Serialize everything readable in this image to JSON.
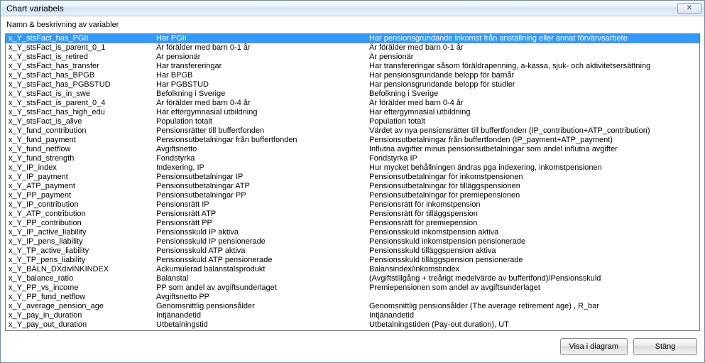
{
  "window": {
    "title": "Chart variabels",
    "subtitle": "Namn & beskrivning av variabler",
    "close_glyph": "✕"
  },
  "footer": {
    "show_btn": "Visa i diagram",
    "close_btn": "Stäng"
  },
  "selected_index": 0,
  "rows": [
    {
      "name": "x_Y_stsFact_has_PGII",
      "label": "Har PGII",
      "desc": "Har pensionsgrundande inkomst från anställning eller annat förvärvsarbete"
    },
    {
      "name": "x_Y_stsFact_is_parent_0_1",
      "label": "Är förälder med barn 0-1 år",
      "desc": "Är förälder med barn 0-1 år"
    },
    {
      "name": "x_Y_stsFact_is_retired",
      "label": "Är pensionär",
      "desc": "Är pensionär"
    },
    {
      "name": "x_Y_stsFact_has_transfer",
      "label": "Har transfereringar",
      "desc": "Har transfereringar såsom föräldrapenning, a-kassa, sjuk- och aktivitetsersättning"
    },
    {
      "name": "x_Y_stsFact_has_BPGB",
      "label": "Har BPGB",
      "desc": "Har pensionsgrundande belopp för barnår"
    },
    {
      "name": "x_Y_stsFact_has_PGBSTUD",
      "label": "Har PGBSTUD",
      "desc": "Har pensionsgrundande belopp för studier"
    },
    {
      "name": "x_Y_stsFact_is_in_swe",
      "label": "Befolkning i Sverige",
      "desc": "Befolkning i Sverige"
    },
    {
      "name": "x_Y_stsFact_is_parent_0_4",
      "label": "Är förälder med barn 0-4 år",
      "desc": "Är förälder med barn 0-4 år"
    },
    {
      "name": "x_Y_stsFact_has_high_edu",
      "label": "Har eftergymnasial utbildning",
      "desc": "Har eftergymnasial utbildning"
    },
    {
      "name": "x_Y_stsFact_is_alive",
      "label": "Population totalt",
      "desc": "Population totalt"
    },
    {
      "name": "x_Y_fund_contribution",
      "label": "Pensionsrätter till buffertfonden",
      "desc": "Värdet av nya pensionsrätter till buffertfonden (IP_contribution+ATP_contribution)"
    },
    {
      "name": "x_Y_fund_payment",
      "label": "Pensionsutbetalningar från buffertfonden",
      "desc": "Pensionsutbetalningar från buffertfonden (IP_payment+ATP_payment)"
    },
    {
      "name": "x_Y_fund_netflow",
      "label": "Avgiftsnetto",
      "desc": "Influtna avgifter minus pensionsutbetalningar som andel influtna avgifter"
    },
    {
      "name": "x_Y_fund_strength",
      "label": "Fondstyrka",
      "desc": "Fondstyrka IP"
    },
    {
      "name": "x_Y_IP_index",
      "label": "Indexering, IP",
      "desc": "Hur mycket behållningen ändras pga indexering, inkomstpensionen"
    },
    {
      "name": "x_Y_IP_payment",
      "label": "Pensionsutbetalningar IP",
      "desc": "Pensionsutbetalningar för inkomstpensionen"
    },
    {
      "name": "x_Y_ATP_payment",
      "label": "Pensionsutbetalningar ATP",
      "desc": "Pensionsutbetalningar för tilläggspensionen"
    },
    {
      "name": "x_Y_PP_payment",
      "label": "Pensionsutbetalningar PP",
      "desc": "Pensionsutbetalningar för premiepensionen"
    },
    {
      "name": "x_Y_IP_contribution",
      "label": "Pensionsrätt IP",
      "desc": "Pensionsrätt för inkomstpension"
    },
    {
      "name": "x_Y_ATP_contribution",
      "label": "Pensionsrätt ATP",
      "desc": "Pensionsrätt för tilläggspension"
    },
    {
      "name": "x_Y_PP_contribution",
      "label": "Pensionsrätt PP",
      "desc": "Pensionsrätt för premiepension"
    },
    {
      "name": "x_Y_IP_active_liability",
      "label": "Pensionsskuld IP aktiva",
      "desc": "Pensionsskuld inkomstpension aktiva"
    },
    {
      "name": "x_Y_IP_pens_liability",
      "label": "Pensionsskuld IP pensionerade",
      "desc": "Pensionsskuld inkomstpension pensionerade"
    },
    {
      "name": "x_Y_TP_active_liability",
      "label": "Pensionsskuld ATP aktiva",
      "desc": "Pensionsskuld tilläggspension aktiva"
    },
    {
      "name": "x_Y_TP_pens_liability",
      "label": "Pensionsskuld ATP pensionerade",
      "desc": "Pensionsskuld tilläggspension pensionerade"
    },
    {
      "name": "x_Y_BALN_DXdivINKINDEX",
      "label": "Ackumulerad balanstalsprodukt",
      "desc": "Balansindex/inkomstindex"
    },
    {
      "name": "x_Y_balance_ratio",
      "label": "Balanstal",
      "desc": "(Avgiftstillgång + treårigt medelvärde av buffertfond)/Pensionsskuld"
    },
    {
      "name": "x_Y_PP_vs_income",
      "label": "PP som andel av avgiftsunderlaget",
      "desc": "Premiepensionen som andel av avgiftsunderlaget"
    },
    {
      "name": "x_Y_PP_fund_netflow",
      "label": "Avgiftsnetto PP",
      "desc": ""
    },
    {
      "name": "x_Y_average_pension_age",
      "label": "Genomsnittlig pensionsålder",
      "desc": "Genomsnittlig pensionsålder (The average retirement age) , R_bar"
    },
    {
      "name": "x_Y_pay_in_duration",
      "label": "Intjänandetid",
      "desc": "Intjänandetid"
    },
    {
      "name": "x_Y_pay_out_duration",
      "label": "Utbetalningstid",
      "desc": "Utbetalningstiden (Pay-out duration), UT"
    }
  ]
}
